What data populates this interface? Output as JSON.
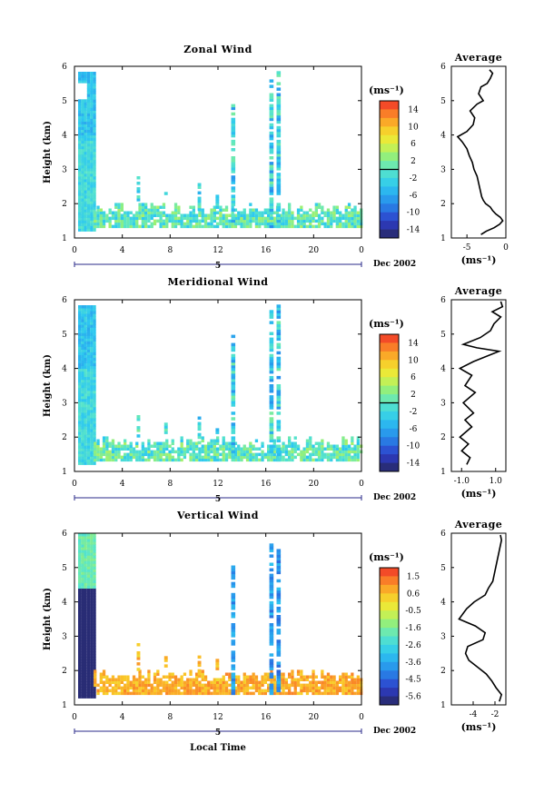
{
  "chart_data": [
    {
      "type": "heatmap",
      "title": "Zonal Wind",
      "ylabel": "Height (km)",
      "xticks": [
        "0",
        "4",
        "8",
        "12",
        "16",
        "20",
        "0"
      ],
      "yticks": [
        "1",
        "2",
        "3",
        "4",
        "5",
        "6"
      ],
      "xlim": [
        0,
        24
      ],
      "ylim": [
        1,
        6
      ],
      "date_label": "Dec 2002",
      "day_label": "5",
      "colorbar": {
        "unit": "(ms⁻¹)",
        "ticks": [
          "14",
          "10",
          "6",
          "2",
          "-2",
          "-6",
          "-10",
          "-14"
        ],
        "range": [
          -16,
          16
        ],
        "zero_line": 0
      },
      "average": {
        "title": "Average",
        "xlabel": "(ms⁻¹)",
        "xticks": [
          "-5",
          "0"
        ],
        "xlim": [
          -7,
          0
        ],
        "profile": [
          [
            -3.2,
            1.1
          ],
          [
            -2.5,
            1.2
          ],
          [
            -1.5,
            1.3
          ],
          [
            -0.8,
            1.4
          ],
          [
            -0.4,
            1.5
          ],
          [
            -0.7,
            1.6
          ],
          [
            -1.3,
            1.7
          ],
          [
            -1.7,
            1.8
          ],
          [
            -2.0,
            1.9
          ],
          [
            -2.6,
            2.0
          ],
          [
            -2.9,
            2.1
          ],
          [
            -3.1,
            2.2
          ],
          [
            -3.3,
            2.4
          ],
          [
            -3.5,
            2.6
          ],
          [
            -3.7,
            2.8
          ],
          [
            -4.1,
            3.0
          ],
          [
            -4.3,
            3.2
          ],
          [
            -4.7,
            3.4
          ],
          [
            -5.0,
            3.6
          ],
          [
            -5.6,
            3.8
          ],
          [
            -6.2,
            3.95
          ],
          [
            -5.0,
            4.1
          ],
          [
            -4.2,
            4.3
          ],
          [
            -4.0,
            4.5
          ],
          [
            -4.6,
            4.7
          ],
          [
            -3.7,
            4.9
          ],
          [
            -2.9,
            5.0
          ],
          [
            -3.5,
            5.2
          ],
          [
            -3.2,
            5.4
          ],
          [
            -2.4,
            5.5
          ],
          [
            -2.0,
            5.65
          ],
          [
            -1.7,
            5.8
          ],
          [
            -2.1,
            5.9
          ]
        ]
      }
    },
    {
      "type": "heatmap",
      "title": "Meridional Wind",
      "ylabel": "Height (km)",
      "xticks": [
        "0",
        "4",
        "8",
        "12",
        "16",
        "20",
        "0"
      ],
      "yticks": [
        "1",
        "2",
        "3",
        "4",
        "5",
        "6"
      ],
      "xlim": [
        0,
        24
      ],
      "ylim": [
        1,
        6
      ],
      "date_label": "Dec 2002",
      "day_label": "5",
      "colorbar": {
        "unit": "(ms⁻¹)",
        "ticks": [
          "14",
          "10",
          "6",
          "2",
          "-2",
          "-6",
          "-10",
          "-14"
        ],
        "range": [
          -16,
          16
        ],
        "zero_line": 0
      },
      "average": {
        "title": "Average",
        "xlabel": "(ms⁻¹)",
        "xticks": [
          "-1.0",
          "1.0"
        ],
        "xlim": [
          -1.6,
          1.6
        ],
        "profile": [
          [
            -0.7,
            1.2
          ],
          [
            -0.5,
            1.4
          ],
          [
            -1.0,
            1.6
          ],
          [
            -0.6,
            1.8
          ],
          [
            -1.1,
            2.0
          ],
          [
            -0.4,
            2.3
          ],
          [
            -0.8,
            2.5
          ],
          [
            -0.3,
            2.7
          ],
          [
            -0.9,
            3.0
          ],
          [
            -0.2,
            3.3
          ],
          [
            -0.8,
            3.5
          ],
          [
            -0.4,
            3.8
          ],
          [
            -1.1,
            4.0
          ],
          [
            -0.3,
            4.2
          ],
          [
            1.2,
            4.5
          ],
          [
            -0.1,
            4.6
          ],
          [
            -0.9,
            4.7
          ],
          [
            0.1,
            4.9
          ],
          [
            0.7,
            5.1
          ],
          [
            0.9,
            5.3
          ],
          [
            1.3,
            5.5
          ],
          [
            0.8,
            5.65
          ],
          [
            1.4,
            5.8
          ],
          [
            1.3,
            5.95
          ]
        ]
      }
    },
    {
      "type": "heatmap",
      "title": "Vertical Wind",
      "ylabel": "Height (km)",
      "xlabel": "Local Time",
      "xticks": [
        "0",
        "4",
        "8",
        "12",
        "16",
        "20",
        "0"
      ],
      "yticks": [
        "1",
        "2",
        "3",
        "4",
        "5",
        "6"
      ],
      "xlim": [
        0,
        24
      ],
      "ylim": [
        1,
        6
      ],
      "date_label": "Dec 2002",
      "day_label": "5",
      "colorbar": {
        "unit": "(ms⁻¹)",
        "ticks": [
          "1.5",
          "0.6",
          "-0.5",
          "-1.6",
          "-2.6",
          "-3.6",
          "-4.5",
          "-5.6"
        ],
        "range": [
          -6,
          2
        ],
        "zero_line": null
      },
      "average": {
        "title": "Average",
        "xlabel": "(ms⁻¹)",
        "xticks": [
          "-4",
          "-2"
        ],
        "xlim": [
          -6,
          -1
        ],
        "profile": [
          [
            -1.6,
            1.1
          ],
          [
            -1.4,
            1.3
          ],
          [
            -1.9,
            1.5
          ],
          [
            -2.3,
            1.7
          ],
          [
            -2.8,
            1.9
          ],
          [
            -3.6,
            2.1
          ],
          [
            -4.4,
            2.3
          ],
          [
            -4.7,
            2.5
          ],
          [
            -4.5,
            2.7
          ],
          [
            -3.1,
            2.9
          ],
          [
            -2.9,
            3.1
          ],
          [
            -3.8,
            3.3
          ],
          [
            -5.3,
            3.5
          ],
          [
            -4.6,
            3.8
          ],
          [
            -3.9,
            4.0
          ],
          [
            -2.9,
            4.2
          ],
          [
            -2.6,
            4.4
          ],
          [
            -2.2,
            4.6
          ],
          [
            -2.0,
            4.9
          ],
          [
            -1.8,
            5.2
          ],
          [
            -1.6,
            5.5
          ],
          [
            -1.4,
            5.8
          ],
          [
            -1.5,
            5.95
          ]
        ]
      }
    }
  ]
}
